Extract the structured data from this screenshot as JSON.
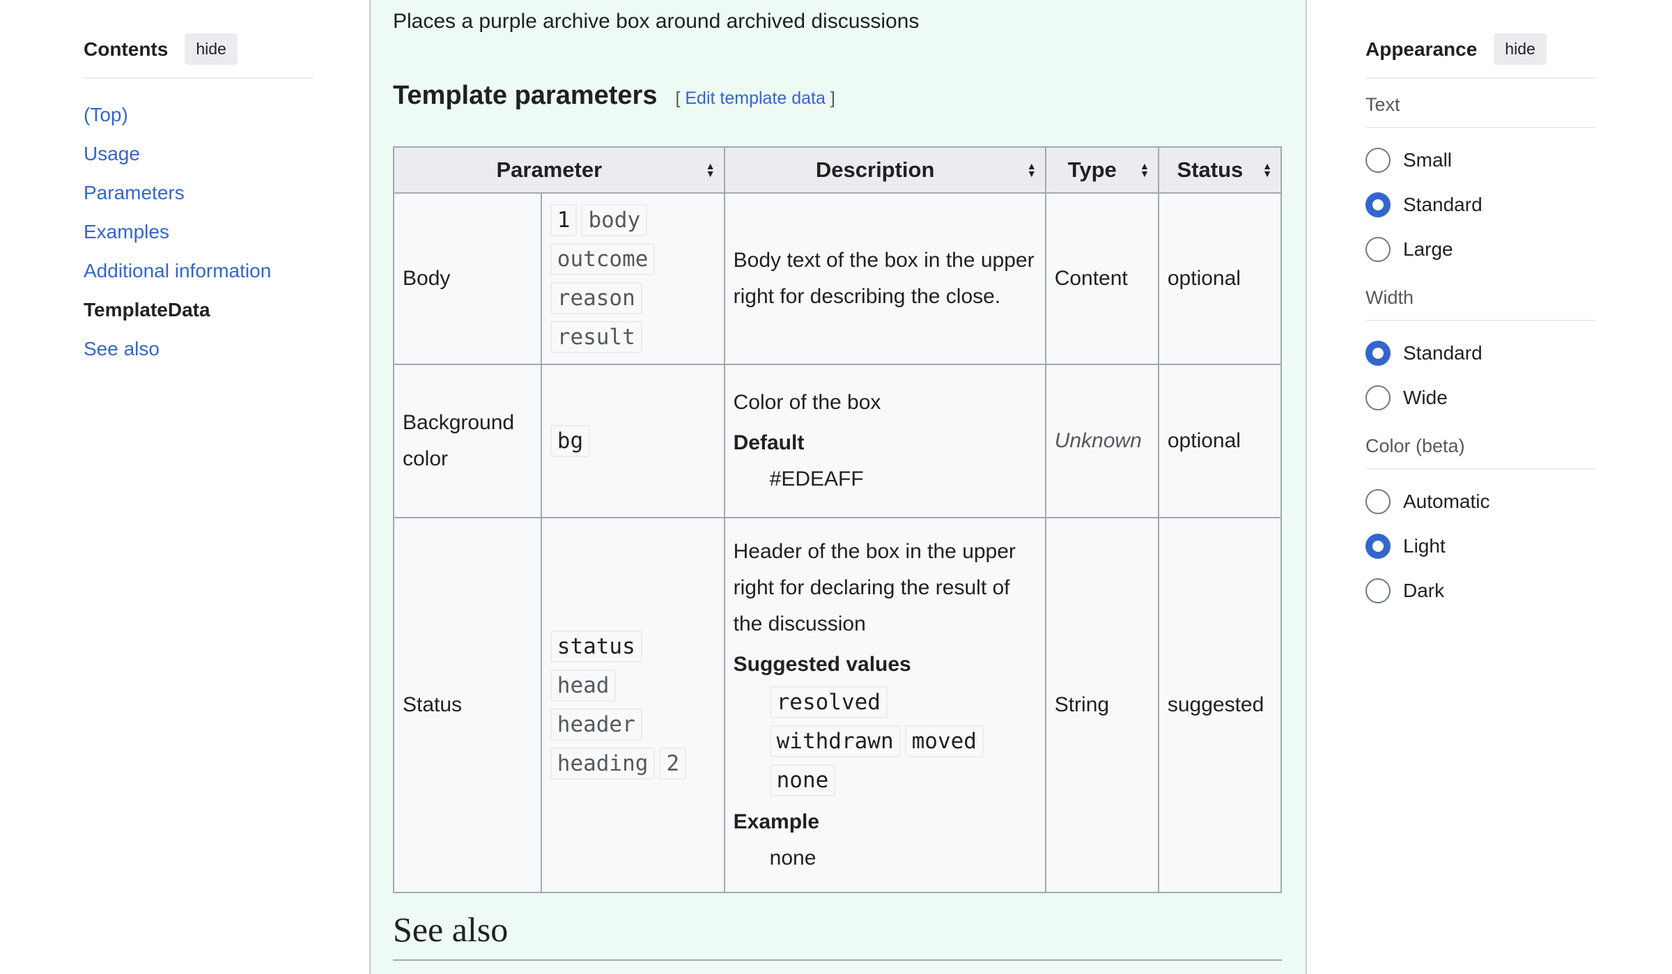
{
  "toc": {
    "title": "Contents",
    "hide_label": "hide",
    "items": [
      {
        "label": "(Top)"
      },
      {
        "label": "Usage"
      },
      {
        "label": "Parameters"
      },
      {
        "label": "Examples"
      },
      {
        "label": "Additional information"
      },
      {
        "label": "TemplateData"
      },
      {
        "label": "See also"
      }
    ]
  },
  "main": {
    "intro": "Places a purple archive box around archived discussions",
    "heading": "Template parameters",
    "edit_open": "[",
    "edit_link": "Edit template data",
    "edit_close": "]",
    "columns": [
      "Parameter",
      "Description",
      "Type",
      "Status"
    ],
    "rows": [
      {
        "label": "Body",
        "codes": [
          "1",
          "body",
          "outcome",
          "reason",
          "result"
        ],
        "description": "Body text of the box in the upper right for describing the close.",
        "type": "Content",
        "status": "optional"
      },
      {
        "label": "Background color",
        "codes": [
          "bg"
        ],
        "description": "Color of the box",
        "default_label": "Default",
        "default_value": "#EDEAFF",
        "type": "Unknown",
        "status": "optional"
      },
      {
        "label": "Status",
        "codes": [
          "status",
          "head",
          "header",
          "heading",
          "2"
        ],
        "description": "Header of the box in the upper right for declaring the result of the discussion",
        "suggested_label": "Suggested values",
        "suggested": [
          "resolved",
          "withdrawn",
          "moved",
          "none"
        ],
        "example_label": "Example",
        "example_value": "none",
        "type": "String",
        "status": "suggested"
      }
    ],
    "see_also": "See also"
  },
  "appearance": {
    "title": "Appearance",
    "hide_label": "hide",
    "text_label": "Text",
    "text_options": [
      "Small",
      "Standard",
      "Large"
    ],
    "text_selected": "Standard",
    "width_label": "Width",
    "width_options": [
      "Standard",
      "Wide"
    ],
    "width_selected": "Standard",
    "color_label": "Color (beta)",
    "color_options": [
      "Automatic",
      "Light",
      "Dark"
    ],
    "color_selected": "Light"
  },
  "colors": {
    "link": "#3366cc",
    "main_bg": "#eefaf4",
    "table_header": "#eaecf0"
  }
}
